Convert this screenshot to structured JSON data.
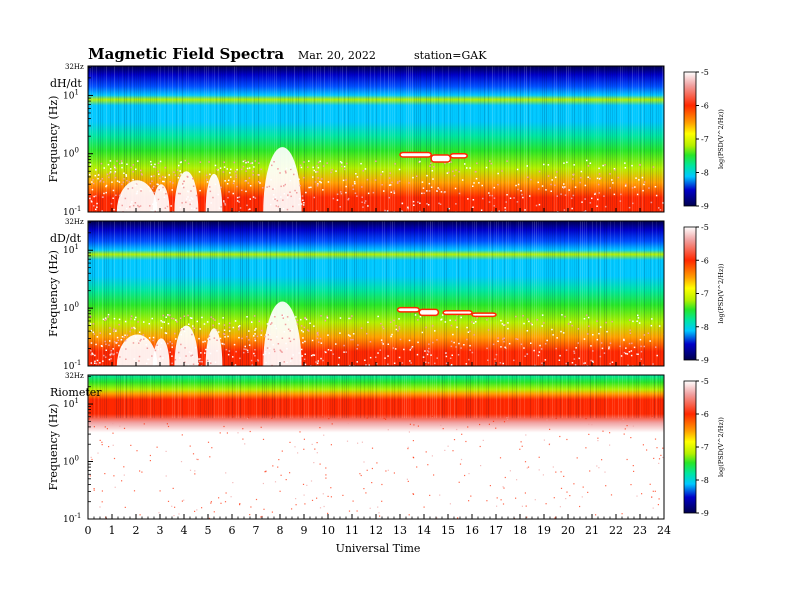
{
  "header": {
    "title": "Magnetic  Field  Spectra",
    "date": "Mar. 20, 2022",
    "station": "station=GAK"
  },
  "colors": {
    "colormap": [
      "#00004d",
      "#0000c8",
      "#0050ff",
      "#00c8ff",
      "#00e6a0",
      "#28e628",
      "#b4f000",
      "#ffff00",
      "#ffa000",
      "#ff2800",
      "#f0a0a0",
      "#ffffff"
    ],
    "background": "#ffffff"
  },
  "chart_data": [
    {
      "type": "heatmap",
      "panel_label": "dH/dt",
      "top_label": "32Hz",
      "ylabel": "Frequency  (Hz)",
      "y_ticks": [
        {
          "base": "10",
          "exp": "1",
          "value": 10
        },
        {
          "base": "10",
          "exp": "0",
          "value": 1
        },
        {
          "base": "10",
          "exp": "-1",
          "value": 0.1
        }
      ],
      "ylim": [
        0.1,
        32
      ],
      "y_scale": "log",
      "xlim": [
        0,
        24
      ],
      "colorbar": {
        "label": "log(PSD(V^2/Hz))",
        "range": [
          -9,
          -5
        ],
        "ticks": [
          "-5",
          "-6",
          "-7",
          "-8",
          "-9"
        ]
      }
    },
    {
      "type": "heatmap",
      "panel_label": "dD/dt",
      "top_label": "32Hz",
      "ylabel": "Frequency  (Hz)",
      "y_ticks": [
        {
          "base": "10",
          "exp": "1",
          "value": 10
        },
        {
          "base": "10",
          "exp": "0",
          "value": 1
        },
        {
          "base": "10",
          "exp": "-1",
          "value": 0.1
        }
      ],
      "ylim": [
        0.1,
        32
      ],
      "y_scale": "log",
      "xlim": [
        0,
        24
      ],
      "colorbar": {
        "label": "log(PSD(V^2/Hz))",
        "range": [
          -9,
          -5
        ],
        "ticks": [
          "-5",
          "-6",
          "-7",
          "-8",
          "-9"
        ]
      }
    },
    {
      "type": "heatmap",
      "panel_label": "Riometer",
      "top_label": "32Hz",
      "ylabel": "Frequency  (Hz)",
      "y_ticks": [
        {
          "base": "10",
          "exp": "1",
          "value": 10
        },
        {
          "base": "10",
          "exp": "0",
          "value": 1
        },
        {
          "base": "10",
          "exp": "-1",
          "value": 0.1
        }
      ],
      "ylim": [
        0.1,
        32
      ],
      "y_scale": "log",
      "xlim": [
        0,
        24
      ],
      "colorbar": {
        "label": "log(PSD(V^2/Hz))",
        "range": [
          -9,
          -5
        ],
        "ticks": [
          "-5",
          "-6",
          "-7",
          "-8",
          "-9"
        ]
      }
    }
  ],
  "x_axis": {
    "label": "Universal  Time",
    "ticks": [
      "0",
      "1",
      "2",
      "3",
      "4",
      "5",
      "6",
      "7",
      "8",
      "9",
      "10",
      "11",
      "12",
      "13",
      "14",
      "15",
      "16",
      "17",
      "18",
      "19",
      "20",
      "21",
      "22",
      "23",
      "24"
    ]
  }
}
